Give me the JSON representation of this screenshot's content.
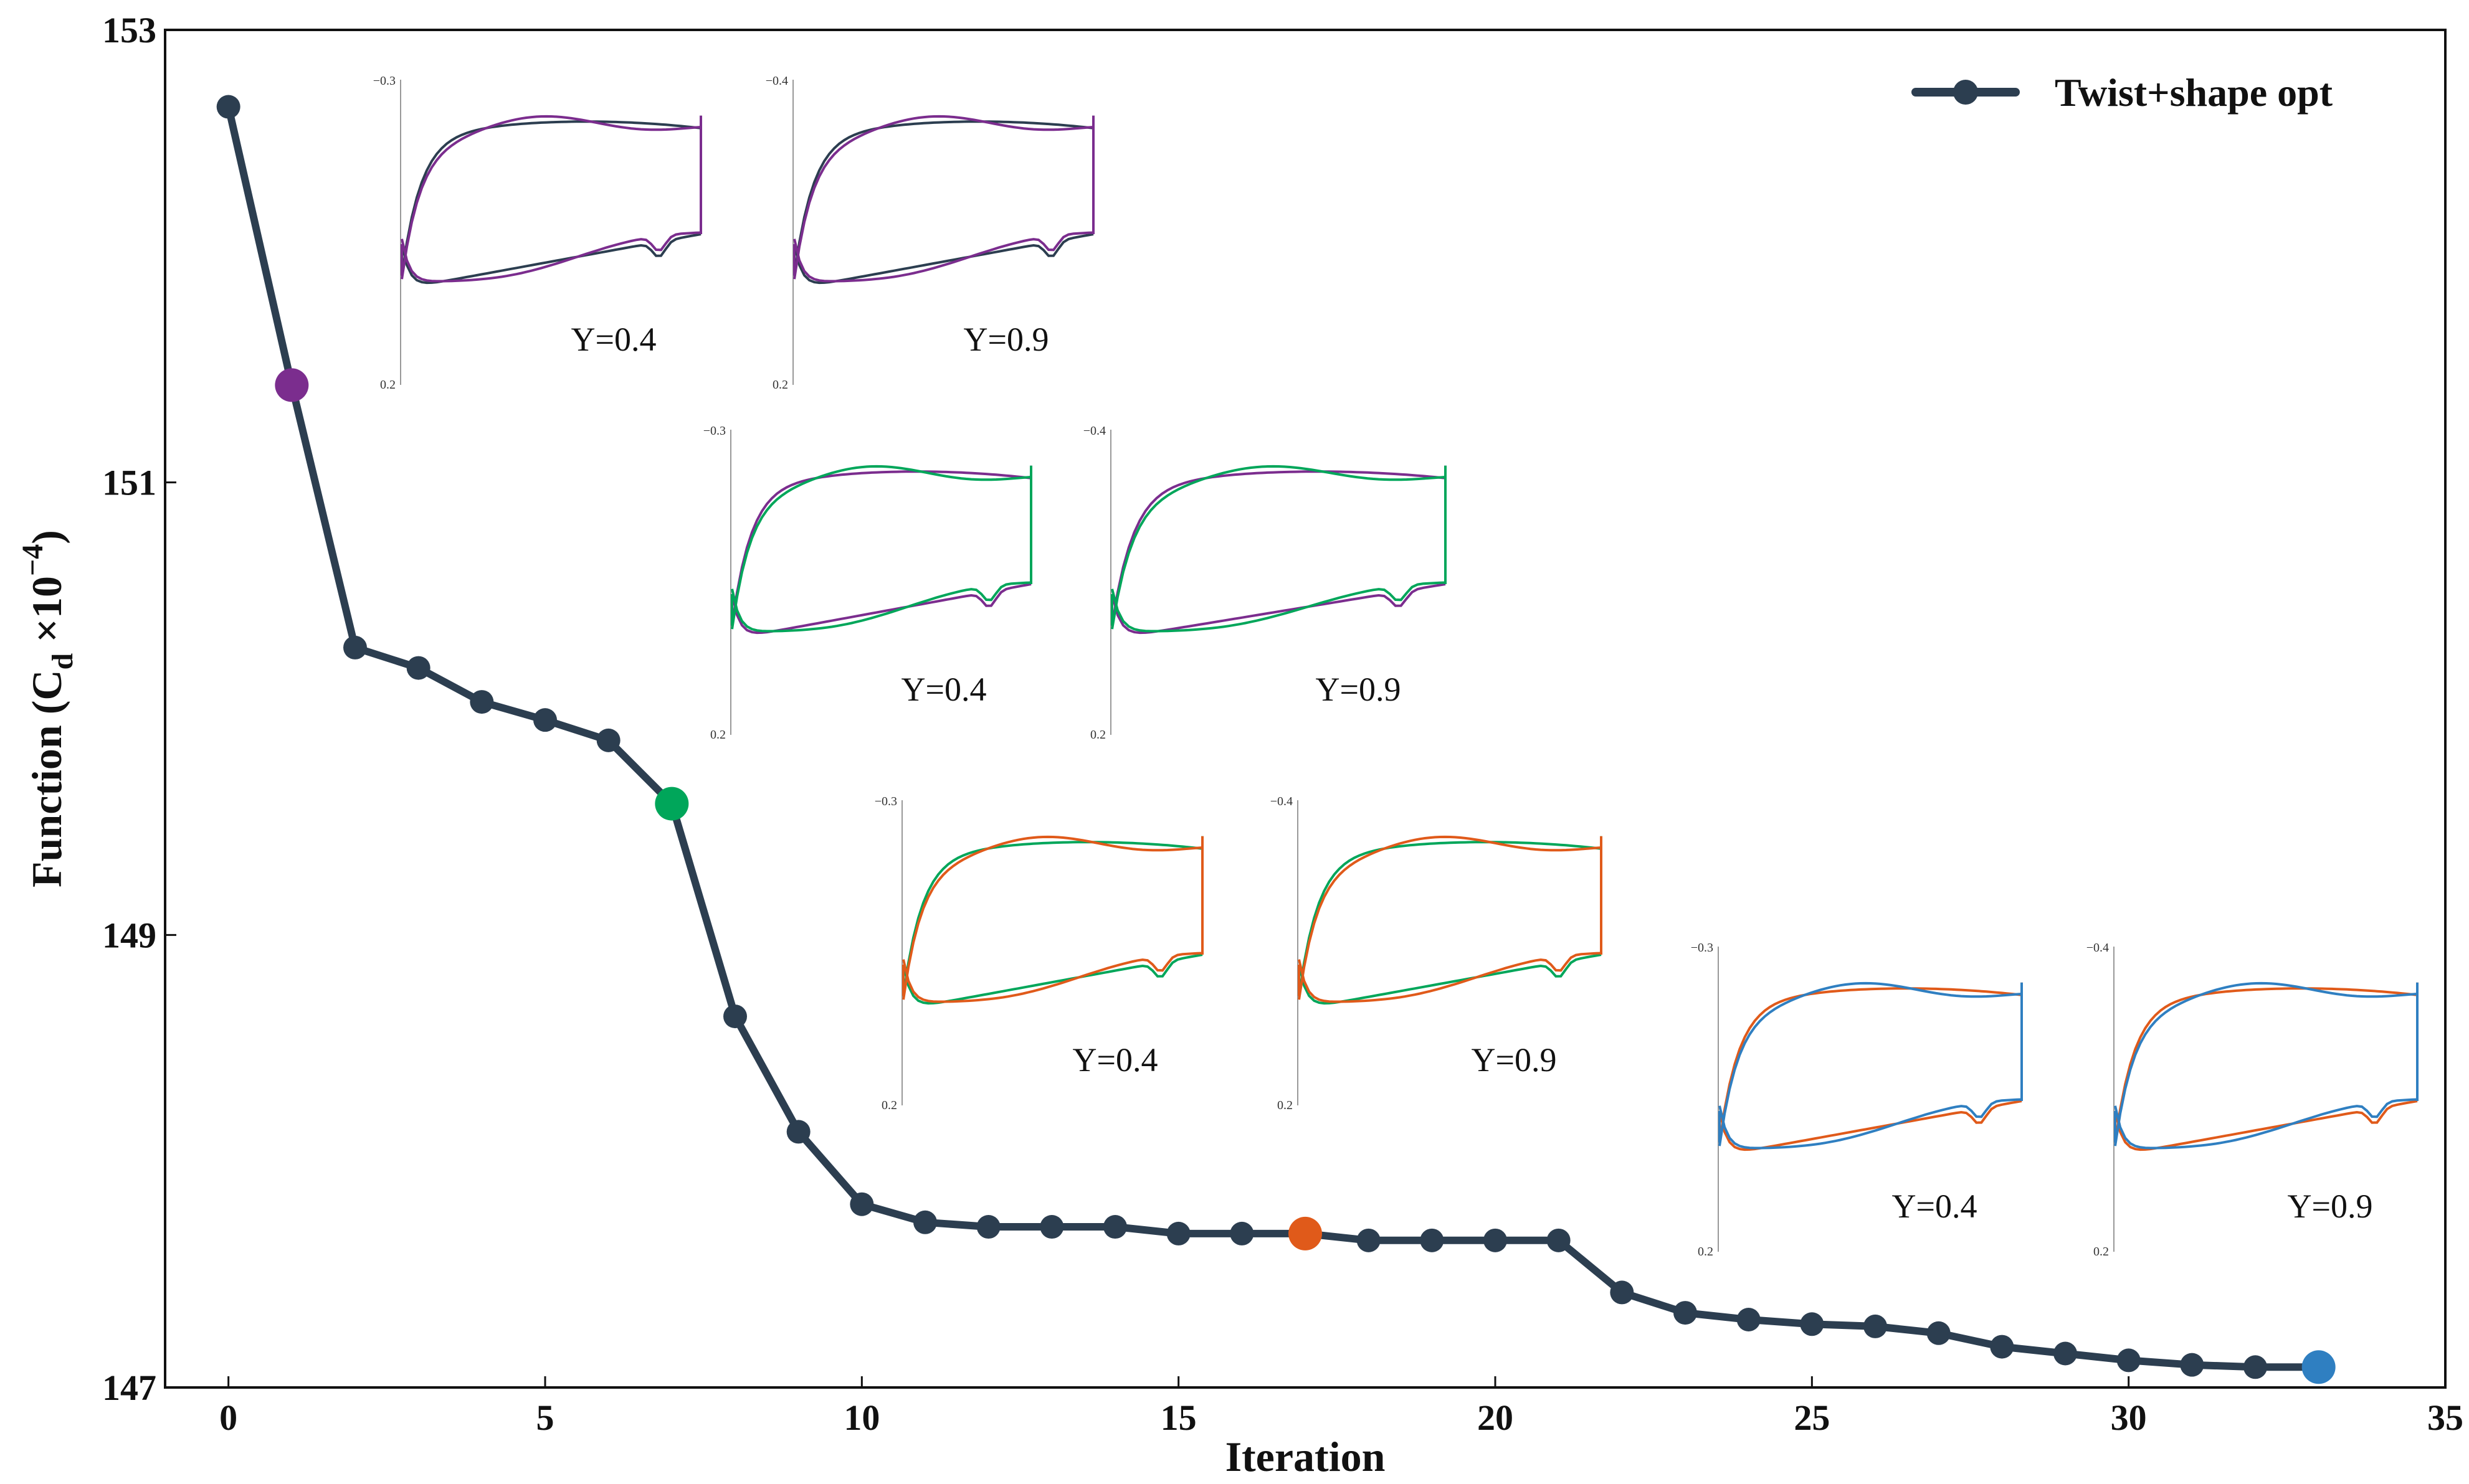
{
  "chart_data": {
    "type": "line",
    "xlabel": "Iteration",
    "ylabel_main": "Function (C",
    "ylabel_sub": "d",
    "ylabel_mid": " ×10",
    "ylabel_sup": "−4",
    "ylabel_end": ")",
    "xlim": [
      -1,
      35
    ],
    "ylim": [
      147,
      153
    ],
    "xticks": [
      "0",
      "5",
      "10",
      "15",
      "20",
      "25",
      "30",
      "35"
    ],
    "yticks": [
      "147",
      "149",
      "151",
      "153"
    ],
    "grid": false,
    "legend_position": "top-right",
    "series": [
      {
        "name": "Twist+shape opt",
        "color": "#2c3e50",
        "x": [
          0,
          1,
          2,
          3,
          4,
          5,
          6,
          7,
          8,
          9,
          10,
          11,
          12,
          13,
          14,
          15,
          16,
          17,
          18,
          19,
          20,
          21,
          22,
          23,
          24,
          25,
          26,
          27,
          28,
          29,
          30,
          31,
          32,
          33
        ],
        "y": [
          152.66,
          151.43,
          150.27,
          150.18,
          150.03,
          149.95,
          149.86,
          149.58,
          148.64,
          148.13,
          147.81,
          147.73,
          147.71,
          147.71,
          147.71,
          147.68,
          147.68,
          147.68,
          147.65,
          147.65,
          147.65,
          147.65,
          147.42,
          147.33,
          147.3,
          147.28,
          147.27,
          147.24,
          147.18,
          147.15,
          147.12,
          147.1,
          147.09,
          147.09
        ]
      }
    ],
    "highlighted_points": [
      {
        "x": 1,
        "y": 151.43,
        "color": "#7b2d8e"
      },
      {
        "x": 7,
        "y": 149.58,
        "color": "#00a65a"
      },
      {
        "x": 17,
        "y": 147.68,
        "color": "#e05a1a"
      },
      {
        "x": 33,
        "y": 147.09,
        "color": "#2f7fc1"
      }
    ],
    "insets": [
      {
        "label": "Y=0.4",
        "top_tick": "−0.3",
        "bottom_tick": "0.2",
        "colors": [
          "#2c3e50",
          "#7b2d8e"
        ]
      },
      {
        "label": "Y=0.9",
        "top_tick": "−0.4",
        "bottom_tick": "0.2",
        "colors": [
          "#2c3e50",
          "#7b2d8e"
        ]
      },
      {
        "label": "Y=0.4",
        "top_tick": "−0.3",
        "bottom_tick": "0.2",
        "colors": [
          "#7b2d8e",
          "#00a65a"
        ]
      },
      {
        "label": "Y=0.9",
        "top_tick": "−0.4",
        "bottom_tick": "0.2",
        "colors": [
          "#7b2d8e",
          "#00a65a"
        ]
      },
      {
        "label": "Y=0.4",
        "top_tick": "−0.3",
        "bottom_tick": "0.2",
        "colors": [
          "#00a65a",
          "#e05a1a"
        ]
      },
      {
        "label": "Y=0.9",
        "top_tick": "−0.4",
        "bottom_tick": "0.2",
        "colors": [
          "#00a65a",
          "#e05a1a"
        ]
      },
      {
        "label": "Y=0.4",
        "top_tick": "−0.3",
        "bottom_tick": "0.2",
        "colors": [
          "#e05a1a",
          "#2f7fc1"
        ]
      },
      {
        "label": "Y=0.9",
        "top_tick": "−0.4",
        "bottom_tick": "0.2",
        "colors": [
          "#e05a1a",
          "#2f7fc1"
        ]
      }
    ]
  }
}
